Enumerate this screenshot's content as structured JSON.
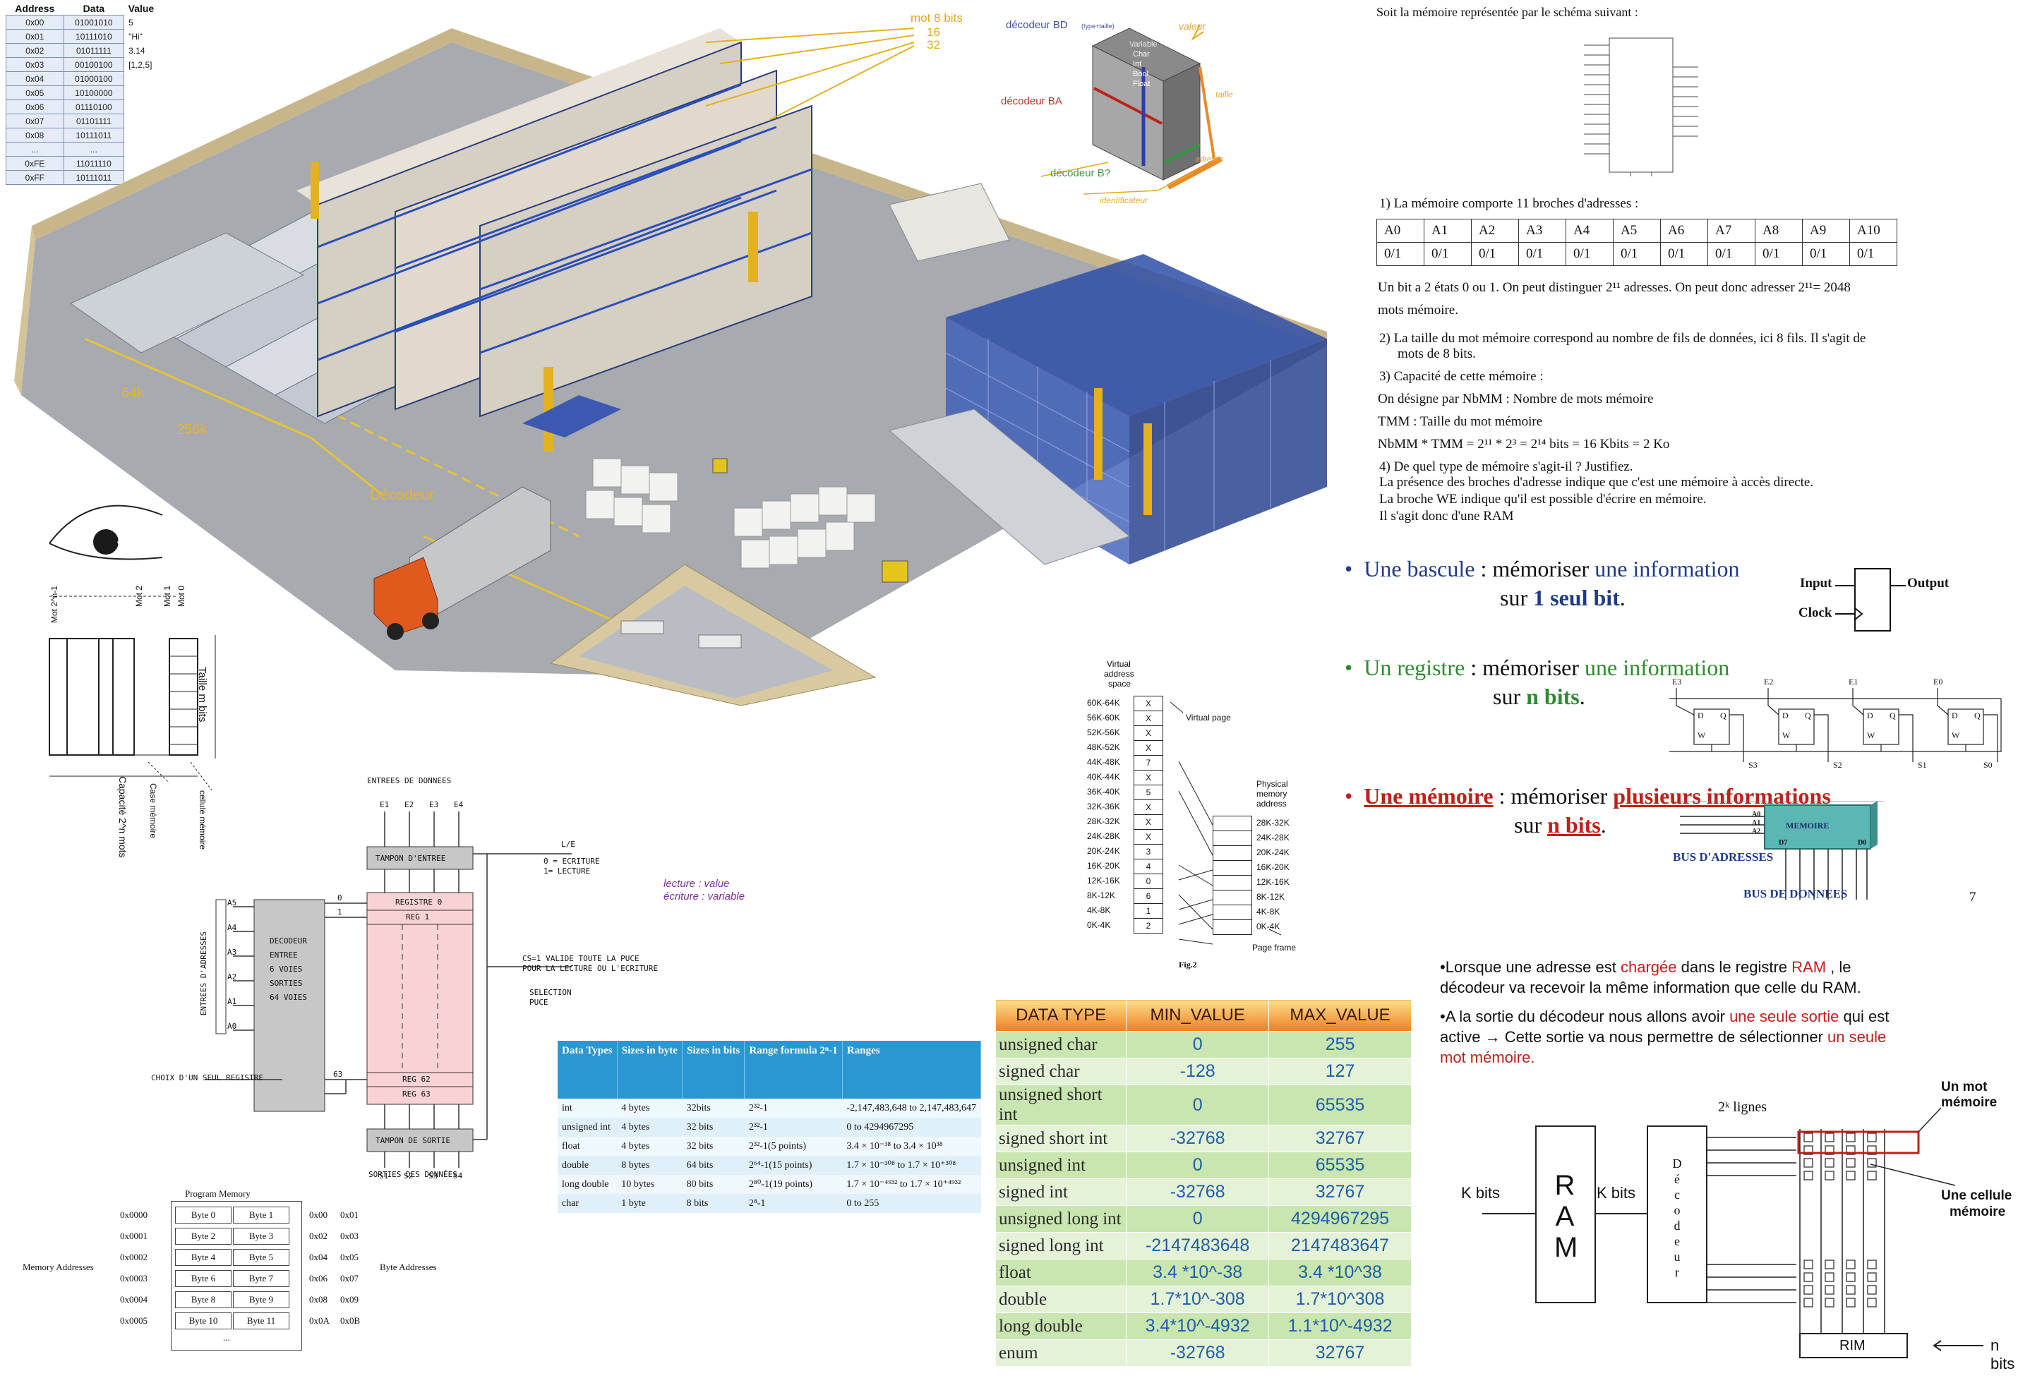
{
  "colors": {
    "accent_blue": "#1f3a8a",
    "accent_green": "#2e8b2e",
    "accent_red": "#c0201a",
    "bd_blue": "#3a4fa8",
    "ba_red": "#b8322a",
    "b_green": "#3e9a4a",
    "orange": "#e8a63a",
    "purple": "#7a2f9e",
    "table_header_blue": "#2b97d2",
    "dt_green": "#c9e6b0",
    "dt_header": "#f3a043"
  },
  "address_table": {
    "header_address": "Address",
    "header_data": "Data",
    "header_value": "Value",
    "rows": [
      {
        "address": "0x00",
        "data": "01001010",
        "value": "5"
      },
      {
        "address": "0x01",
        "data": "10111010",
        "value": "\"Hi\""
      },
      {
        "address": "0x02",
        "data": "01011111",
        "value": "3.14"
      },
      {
        "address": "0x03",
        "data": "00100100",
        "value": "[1,2,5]"
      },
      {
        "address": "0x04",
        "data": "01000100",
        "value": ""
      },
      {
        "address": "0x05",
        "data": "10100000",
        "value": ""
      },
      {
        "address": "0x06",
        "data": "01110100",
        "value": ""
      },
      {
        "address": "0x07",
        "data": "01101111",
        "value": ""
      },
      {
        "address": "0x08",
        "data": "10111011",
        "value": ""
      },
      {
        "address": "...",
        "data": "...",
        "value": ""
      },
      {
        "address": "0xFE",
        "data": "11011110",
        "value": ""
      },
      {
        "address": "0xFF",
        "data": "10111011",
        "value": ""
      }
    ]
  },
  "warehouse": {
    "mot_label_1": "mot 8 bits",
    "mot_label_2": "16",
    "mot_label_3": "32",
    "label_64k": "64k",
    "label_256k": "256k",
    "label_decodeur": "Décodeur"
  },
  "cube": {
    "decodeur_bd": "décodeur BD",
    "decodeur_bd_sub": "(type+taille)",
    "valeur": "valeur",
    "variable": "Variable",
    "char": "Char",
    "int": "Int",
    "bool": "Bool",
    "float": "Float",
    "decodeur_ba": "décodeur BA",
    "taille": "taille",
    "adresse": "adresse",
    "decodeur_b": "décodeur B?",
    "identificateur": "identificateur"
  },
  "oeil": {
    "eye_label": "oeil",
    "mot0": "Mot 0",
    "mot1": "Mot 1",
    "mot2": "Mot 2",
    "mot_n": "Mot 2^n-1",
    "taille": "Taille m bits",
    "capacite": "Capacité 2^n mots",
    "case": "Case mémoire",
    "cellule": "cellule mémoire"
  },
  "decoder_diagram": {
    "entrees": "ENTREES DE DONNEES",
    "e1": "E1",
    "e2": "E2",
    "e3": "E3",
    "e4": "E4",
    "tampon_entree": "TAMPON D'ENTREE",
    "le": "L/E",
    "ecriture": "0 = ECRITURE",
    "lecture": "1= LECTURE",
    "registre0": "REGISTRE 0",
    "reg1": "REG 1",
    "reg62": "REG 62",
    "reg63": "REG 63",
    "decodeur": "DECODEUR",
    "entree": "ENTREE",
    "six_voies": "6 VOIES",
    "sorties": "SORTIES",
    "voies64": "64 VOIES",
    "a5": "A5",
    "a4": "A4",
    "a3": "A3",
    "a2": "A2",
    "a1": "A1",
    "a0": "A0",
    "entrees_adresses": "ENTREES D'ADRESSES",
    "zero": "0",
    "one": "1",
    "sixtythree": "63",
    "cs": "CS=1 VALIDE TOUTE LA PUCE",
    "cs2": "POUR LA LECTURE OU L'ECRITURE",
    "selection": "SELECTION",
    "puce": "PUCE",
    "choix": "CHOIX D'UN SEUL REGISTRE",
    "tampon_sortie": "TAMPON DE SORTIE",
    "s1": "S1",
    "s2": "S2",
    "s3": "S3",
    "s4": "S4",
    "sorties_donnees": "SORTIES DES DONNÉES",
    "lecture_value": "lecture : value",
    "ecriture_variable": "écriture : variable"
  },
  "program_memory": {
    "title": "Program Memory",
    "memory_addresses": "Memory Addresses",
    "byte_addresses": "Byte Addresses",
    "ellipsis": "...",
    "rows": [
      {
        "addr": "0x0000",
        "b1": "Byte 0",
        "b2": "Byte 1",
        "a1": "0x00",
        "a2": "0x01"
      },
      {
        "addr": "0x0001",
        "b1": "Byte 2",
        "b2": "Byte 3",
        "a1": "0x02",
        "a2": "0x03"
      },
      {
        "addr": "0x0002",
        "b1": "Byte 4",
        "b2": "Byte 5",
        "a1": "0x04",
        "a2": "0x05"
      },
      {
        "addr": "0x0003",
        "b1": "Byte 6",
        "b2": "Byte 7",
        "a1": "0x06",
        "a2": "0x07"
      },
      {
        "addr": "0x0004",
        "b1": "Byte 8",
        "b2": "Byte 9",
        "a1": "0x08",
        "a2": "0x09"
      },
      {
        "addr": "0x0005",
        "b1": "Byte 10",
        "b2": "Byte 11",
        "a1": "0x0A",
        "a2": "0x0B"
      }
    ]
  },
  "blue_table": {
    "headers": [
      "Data Types",
      "Sizes in byte",
      "Sizes in bits",
      "Range formula 2ⁿ-1",
      "Ranges"
    ],
    "rows": [
      [
        "int",
        "4 bytes",
        "32bits",
        "2³²-1",
        "-2,147,483,648 to 2,147,483,647"
      ],
      [
        "unsigned int",
        "4 bytes",
        "32 bits",
        "2³²-1",
        "0 to  4294967295"
      ],
      [
        "float",
        "4 bytes",
        "32 bits",
        "2³²-1(5 points)",
        "3.4 × 10⁻³⁸ to 3.4 × 10³⁸"
      ],
      [
        "double",
        "8 bytes",
        "64 bits",
        "2⁶⁴-1(15 points)",
        "1.7 × 10⁻³⁰⁸ to 1.7 × 10⁺³⁰⁸"
      ],
      [
        "long double",
        "10 bytes",
        "80 bits",
        "2⁸⁰-1(19 points)",
        "1.7 × 10⁻⁴⁹³² to 1.7 × 10⁺⁴⁹³²"
      ],
      [
        "char",
        "1 byte",
        "8 bits",
        "2⁸-1",
        "0 to 255"
      ]
    ]
  },
  "virtual_memory": {
    "title1": "Virtual",
    "title2": "address",
    "title3": "space",
    "virtual_page": "Virtual page",
    "physical1": "Physical",
    "physical2": "memory",
    "physical3": "address",
    "page_frame": "Page frame",
    "fig": "Fig.2",
    "left": [
      {
        "range": "60K-64K",
        "val": "X"
      },
      {
        "range": "56K-60K",
        "val": "X"
      },
      {
        "range": "52K-56K",
        "val": "X"
      },
      {
        "range": "48K-52K",
        "val": "X"
      },
      {
        "range": "44K-48K",
        "val": "7"
      },
      {
        "range": "40K-44K",
        "val": "X"
      },
      {
        "range": "36K-40K",
        "val": "5"
      },
      {
        "range": "32K-36K",
        "val": "X"
      },
      {
        "range": "28K-32K",
        "val": "X"
      },
      {
        "range": "24K-28K",
        "val": "X"
      },
      {
        "range": "20K-24K",
        "val": "3"
      },
      {
        "range": "16K-20K",
        "val": "4"
      },
      {
        "range": "12K-16K",
        "val": "0"
      },
      {
        "range": "8K-12K",
        "val": "6"
      },
      {
        "range": "4K-8K",
        "val": "1"
      },
      {
        "range": "0K-4K",
        "val": "2"
      }
    ],
    "right": [
      "28K-32K",
      "24K-28K",
      "20K-24K",
      "16K-20K",
      "12K-16K",
      "8K-12K",
      "4K-8K",
      "0K-4K"
    ]
  },
  "data_type_table": {
    "header_type": "DATA TYPE",
    "header_min": "MIN_VALUE",
    "header_max": "MAX_VALUE",
    "rows": [
      [
        "unsigned char",
        "0",
        "255"
      ],
      [
        "signed char",
        "-128",
        "127"
      ],
      [
        "unsigned short int",
        "0",
        "65535"
      ],
      [
        "signed short int",
        "-32768",
        "32767"
      ],
      [
        "unsigned int",
        "0",
        "65535"
      ],
      [
        "signed int",
        "-32768",
        "32767"
      ],
      [
        "unsigned long int",
        "0",
        "4294967295"
      ],
      [
        "signed long int",
        "-2147483648",
        "2147483647"
      ],
      [
        "float",
        "3.4 *10^-38",
        "3.4 *10^38"
      ],
      [
        "double",
        "1.7*10^-308",
        "1.7*10^308"
      ],
      [
        "long double",
        "3.4*10^-4932",
        "1.1*10^-4932"
      ],
      [
        "enum",
        "-32768",
        "32767"
      ]
    ]
  },
  "french_text": {
    "intro": "Soit la mémoire représentée par le schéma suivant :",
    "q1": "1)  La mémoire comporte 11 broches d'adresses :",
    "broche_heads": [
      "A0",
      "A1",
      "A2",
      "A3",
      "A4",
      "A5",
      "A6",
      "A7",
      "A8",
      "A9",
      "A10"
    ],
    "broche_vals": [
      "0/1",
      "0/1",
      "0/1",
      "0/1",
      "0/1",
      "0/1",
      "0/1",
      "0/1",
      "0/1",
      "0/1",
      "0/1"
    ],
    "p1": "Un bit a 2 états 0 ou 1. On peut distinguer  2¹¹ adresses. On peut donc adresser 2¹¹= 2048",
    "p1b": "mots mémoire.",
    "q2": "2)  La taille du mot mémoire correspond au nombre de fils de données, ici 8 fils. Il s'agit de",
    "q2b": "mots de 8 bits.",
    "q3": "3)  Capacité de cette mémoire :",
    "l1": "On désigne par NbMM : Nombre de mots mémoire",
    "l2": "TMM : Taille du mot mémoire",
    "l3": "NbMM * TMM = 2¹¹ * 2³ = 2¹⁴ bits = 16 Kbits = 2 Ko",
    "q4": "4)  De quel type de mémoire s'agit-il ? Justifiez.",
    "l4": "La présence des broches d'adresse indique que c'est une mémoire à accès directe.",
    "l5": "La broche WE indique qu'il est possible d'écrire en mémoire.",
    "l6": "Il s'agit donc d'une RAM"
  },
  "bullets": {
    "b1_a": "Une bascule",
    "b1_b": " : mémoriser ",
    "b1_c": "une information",
    "b1_d": "sur ",
    "b1_e": "1 seul bit",
    "b1_f": ".",
    "input": "Input",
    "output": "Output",
    "clock": "Clock",
    "b2_a": "Un registre",
    "b2_b": " : mémoriser ",
    "b2_c": "une information",
    "b2_d": "sur ",
    "b2_e": "n bits",
    "b2_f": ".",
    "e3": "E3",
    "e2": "E2",
    "e1": "E1",
    "e0": "E0",
    "s3": "S3",
    "s2": "S2",
    "s1": "S1",
    "s0": "S0",
    "ff_d": "D",
    "ff_q": "Q",
    "ff_w": "W",
    "b3_a": "Une mémoire",
    "b3_b": " : mémoriser ",
    "b3_c": "plusieurs informations",
    "b3_d": "sur ",
    "b3_e": "n bits",
    "b3_f": ".",
    "memoire": "MEMOIRE",
    "a0": "A0",
    "a1": "A1",
    "a2": "A2",
    "d7": "D7",
    "d0": "D0",
    "bus_adresses": "BUS D'ADRESSES",
    "bus_donnees": "BUS DE DONNEES",
    "page": "7"
  },
  "ram_section": {
    "p1_a": "•Lorsque une adresse est ",
    "p1_b": "chargée",
    "p1_c": " dans le registre ",
    "p1_d": "RAM",
    "p1_e": " , le",
    "p1_f": "décodeur va recevoir la même information que celle du RAM.",
    "p2_a": "•A la sortie du décodeur nous allons avoir ",
    "p2_b": "une seule sortie",
    "p2_c": " qui est",
    "p2_d": "active → Cette sortie va nous permettre de sélectionner ",
    "p2_e": "un seule",
    "p2_f": "mot mémoire.",
    "k_lignes": "2ᵏ lignes",
    "un_mot": "Un mot",
    "memoire": "mémoire",
    "une_cellule": "Une cellule",
    "memoire2": "mémoire",
    "k_bits_1": "K bits",
    "ram": "R A M",
    "k_bits_2": "K bits",
    "decodeur": "D é c o d e u r",
    "n_bits": "n bits",
    "rim": "RIM"
  }
}
